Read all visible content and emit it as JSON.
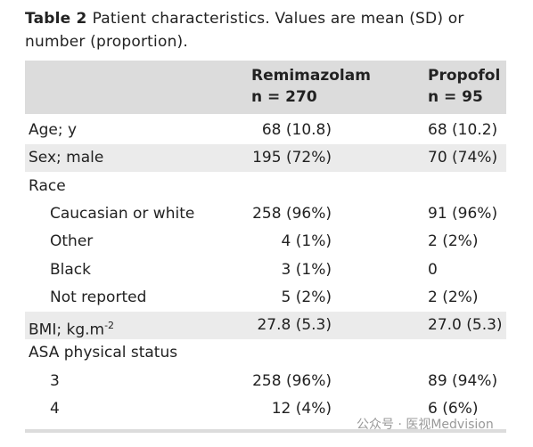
{
  "caption": {
    "label": "Table 2",
    "text": "Patient characteristics. Values are mean (SD) or number (proportion)."
  },
  "table": {
    "columns": [
      {
        "name": "Remimazolam",
        "n": "n = 270"
      },
      {
        "name": "Propofol",
        "n": "n = 95"
      }
    ],
    "rows": [
      {
        "label": "Age; y",
        "values": [
          "68 (10.8)",
          "68 (10.2)"
        ]
      },
      {
        "label": "Sex; male",
        "values": [
          "195 (72%)",
          "70 (74%)"
        ],
        "shaded": true
      },
      {
        "label": "Race",
        "values": []
      },
      {
        "label": "Caucasian or white",
        "values": [
          "258 (96%)",
          "91 (96%)"
        ],
        "indent": true
      },
      {
        "label": "Other",
        "values": [
          "4 (1%)",
          "2 (2%)"
        ],
        "indent": true
      },
      {
        "label": "Black",
        "values": [
          "3 (1%)",
          "0"
        ],
        "indent": true
      },
      {
        "label": "Not reported",
        "values": [
          "5 (2%)",
          "2 (2%)"
        ],
        "indent": true
      },
      {
        "label": "BMI; kg.m",
        "superscript": "-2",
        "values": [
          "27.8 (5.3)",
          "27.0 (5.3)"
        ],
        "shaded": true
      },
      {
        "label": "ASA physical status",
        "values": []
      },
      {
        "label": "3",
        "values": [
          "258 (96%)",
          "89 (94%)"
        ],
        "indent": true
      },
      {
        "label": "4",
        "values": [
          "12 (4%)",
          "6 (6%)"
        ],
        "indent": true
      }
    ]
  },
  "watermark": "公众号 · 医视Medvision"
}
